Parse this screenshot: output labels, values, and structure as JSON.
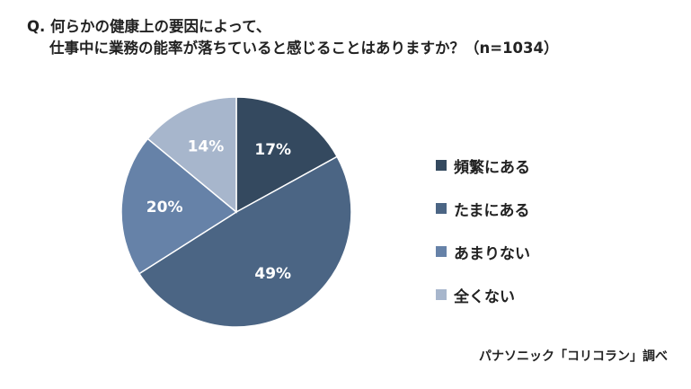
{
  "title": {
    "line1": "Q. 何らかの健康上の要因によって、",
    "line2": "仕事中に業務の能率が落ちていると感じることはありますか？（n=1034）"
  },
  "source": "パナソニック「コリコラン」調べ",
  "chart_data": {
    "type": "pie",
    "categories": [
      "頻繁にある",
      "たまにある",
      "あまりない",
      "全くない"
    ],
    "values": [
      17,
      49,
      20,
      14
    ],
    "labels": [
      "17%",
      "49%",
      "20%",
      "14%"
    ],
    "colors": [
      "#34495f",
      "#4b6584",
      "#6682a8",
      "#a7b6cc"
    ],
    "start_angle": "12 o'clock",
    "direction": "clockwise",
    "legend_position": "right",
    "label_color": "#ffffff"
  }
}
